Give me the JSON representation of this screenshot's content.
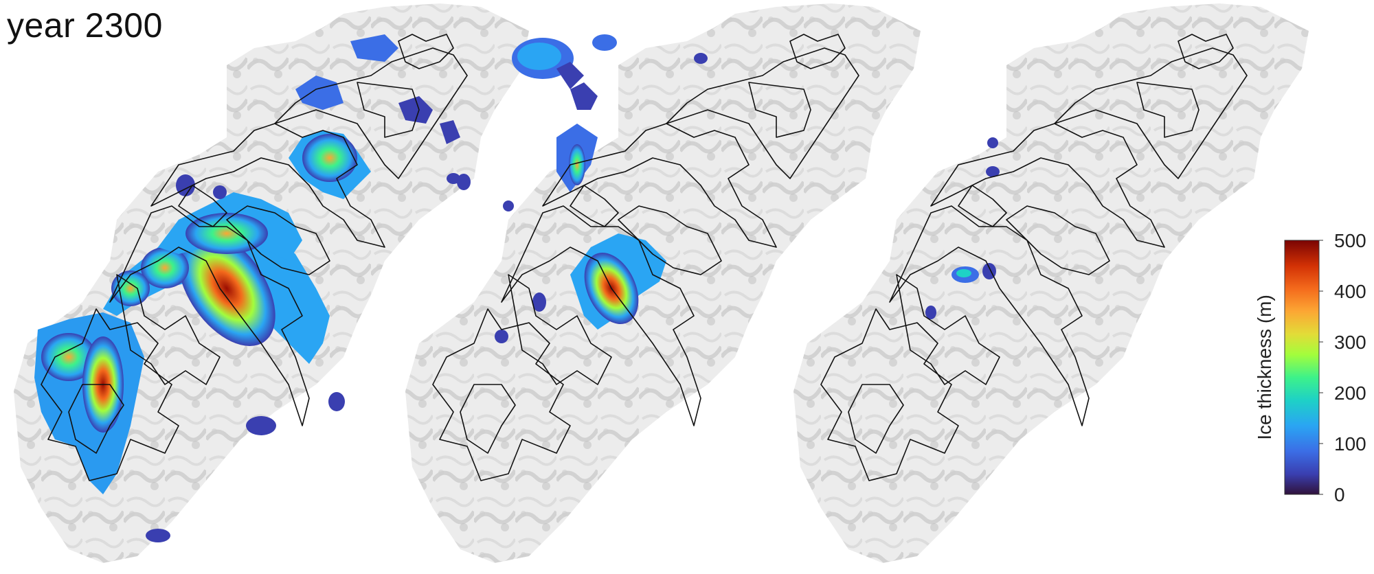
{
  "title": "year 2300",
  "colorbar": {
    "label": "Ice thickness (m)",
    "ticks": [
      "500",
      "400",
      "300",
      "200",
      "100",
      "0"
    ],
    "range": [
      0,
      500
    ],
    "colors": [
      "#30123b",
      "#3a3fb0",
      "#3b6ee6",
      "#2aa5f3",
      "#1ed1c6",
      "#3df28a",
      "#a3fd3c",
      "#e2dc38",
      "#fca734",
      "#f46a1c",
      "#d23105",
      "#9b0d01",
      "#7a0403"
    ]
  },
  "panels": [
    {
      "id": "panel-1"
    },
    {
      "id": "panel-2"
    },
    {
      "id": "panel-3"
    }
  ]
}
